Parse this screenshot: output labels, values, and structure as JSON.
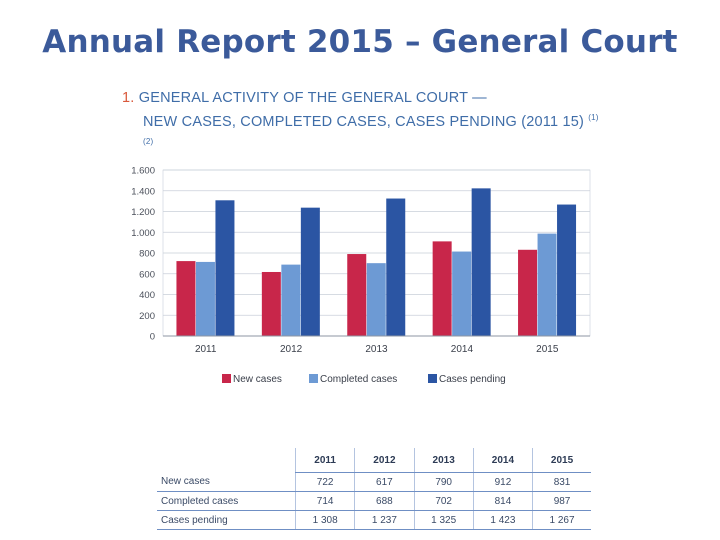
{
  "page": {
    "title": "Annual Report 2015 – General Court"
  },
  "heading": {
    "number": "1.",
    "line1": "GENERAL ACTIVITY OF THE GENERAL COURT —",
    "line2": "NEW CASES, COMPLETED CASES, CASES PENDING (2011  15)",
    "footnote": "(1) (2)"
  },
  "chart_data": {
    "type": "bar",
    "title": "GENERAL ACTIVITY OF THE GENERAL COURT — NEW CASES, COMPLETED CASES, CASES PENDING (2011  15)",
    "categories": [
      "2011",
      "2012",
      "2013",
      "2014",
      "2015"
    ],
    "series": [
      {
        "name": "New cases",
        "values": [
          722,
          617,
          790,
          912,
          831
        ],
        "color": "#c8264a"
      },
      {
        "name": "Completed cases",
        "values": [
          714,
          688,
          702,
          814,
          987
        ],
        "color": "#6d9ad4"
      },
      {
        "name": "Cases pending",
        "values": [
          1308,
          1237,
          1325,
          1423,
          1267
        ],
        "color": "#2b55a3"
      }
    ],
    "ylim": [
      0,
      1600
    ],
    "yticks": [
      0,
      200,
      400,
      600,
      800,
      1000,
      1200,
      1400,
      1600
    ],
    "ytick_labels": [
      "0",
      "200",
      "400",
      "600",
      "800",
      "1.000",
      "1.200",
      "1.400",
      "1.600"
    ],
    "grid": true,
    "legend_position": "bottom",
    "xlabel": "",
    "ylabel": ""
  },
  "table": {
    "columns": [
      "2011",
      "2012",
      "2013",
      "2014",
      "2015"
    ],
    "rows": [
      {
        "label": "New cases",
        "values": [
          "722",
          "617",
          "790",
          "912",
          "831"
        ]
      },
      {
        "label": "Completed cases",
        "values": [
          "714",
          "688",
          "702",
          "814",
          "987"
        ]
      },
      {
        "label": "Cases pending",
        "values": [
          "1 308",
          "1 237",
          "1 325",
          "1 423",
          "1 267"
        ]
      }
    ]
  }
}
